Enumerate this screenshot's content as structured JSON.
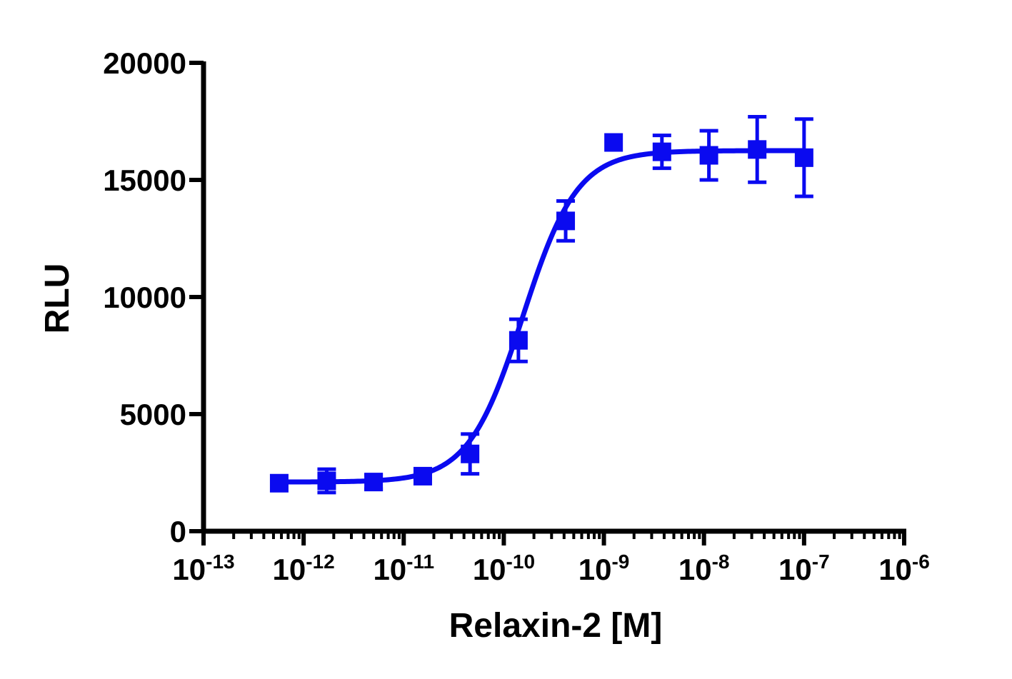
{
  "chart_data": {
    "type": "scatter",
    "title": "",
    "xlabel": "Relaxin-2 [M]",
    "ylabel": "RLU",
    "x_scale": "log10",
    "xlim": [
      1e-13,
      1e-06
    ],
    "ylim": [
      0,
      20000
    ],
    "x_tick_labels": [
      {
        "base": "10",
        "exp": "-13"
      },
      {
        "base": "10",
        "exp": "-12"
      },
      {
        "base": "10",
        "exp": "-11"
      },
      {
        "base": "10",
        "exp": "-10"
      },
      {
        "base": "10",
        "exp": "-9"
      },
      {
        "base": "10",
        "exp": "-8"
      },
      {
        "base": "10",
        "exp": "-7"
      },
      {
        "base": "10",
        "exp": "-6"
      }
    ],
    "y_ticks": [
      0,
      5000,
      10000,
      15000,
      20000
    ],
    "y_tick_labels": [
      "0",
      "5000",
      "10000",
      "15000",
      "20000"
    ],
    "grid": false,
    "legend": "none",
    "series": [
      {
        "color": "#0a0af0",
        "marker": "square",
        "points": [
          {
            "x": 5.7e-13,
            "y": 2050,
            "err": 0
          },
          {
            "x": 1.7e-12,
            "y": 2150,
            "err": 500
          },
          {
            "x": 5e-12,
            "y": 2100,
            "err": 300
          },
          {
            "x": 1.55e-11,
            "y": 2350,
            "err": 100
          },
          {
            "x": 4.6e-11,
            "y": 3300,
            "err": 850
          },
          {
            "x": 1.4e-10,
            "y": 8150,
            "err": 900
          },
          {
            "x": 4.15e-10,
            "y": 13250,
            "err": 850
          },
          {
            "x": 1.25e-09,
            "y": 16600,
            "err": 0
          },
          {
            "x": 3.8e-09,
            "y": 16200,
            "err": 700
          },
          {
            "x": 1.12e-08,
            "y": 16050,
            "err": 1050
          },
          {
            "x": 3.4e-08,
            "y": 16300,
            "err": 1400
          },
          {
            "x": 1e-07,
            "y": 15950,
            "err": 1650
          }
        ],
        "fit": {
          "model": "4PL",
          "bottom": 2100,
          "top": 16250,
          "ec50": 1.55e-10,
          "hill": 1.6
        }
      }
    ]
  }
}
